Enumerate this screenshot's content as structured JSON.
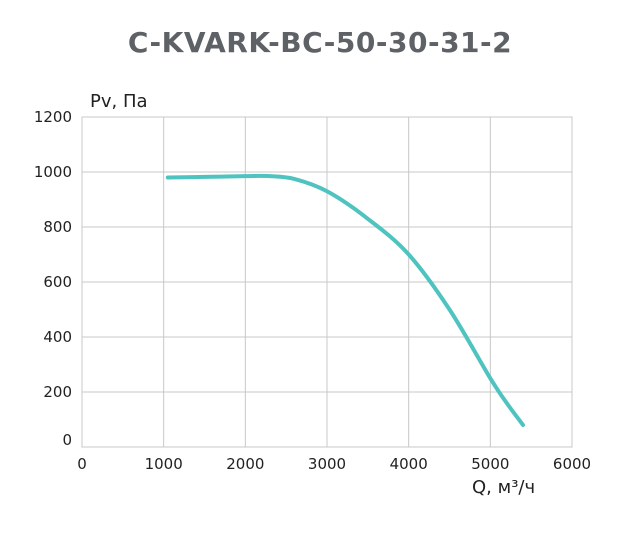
{
  "chart_data": {
    "type": "line",
    "title": "C-KVARK-BC-50-30-31-2",
    "xlabel": "Q, м³/ч",
    "ylabel": "Pv, Па",
    "xlim": [
      0,
      6000
    ],
    "ylim": [
      0,
      1200
    ],
    "xticks": [
      "0",
      "1000",
      "2000",
      "3000",
      "4000",
      "5000",
      "6000"
    ],
    "yticks": [
      "0",
      "200",
      "400",
      "600",
      "800",
      "1000",
      "1200"
    ],
    "grid": true,
    "series": [
      {
        "color": "#4ec3c0",
        "x": [
          1050,
          1500,
          2000,
          2300,
          2600,
          3000,
          3500,
          4000,
          4500,
          5000,
          5200,
          5400
        ],
        "y": [
          980,
          982,
          985,
          985,
          975,
          930,
          830,
          700,
          500,
          250,
          160,
          80
        ]
      }
    ]
  }
}
